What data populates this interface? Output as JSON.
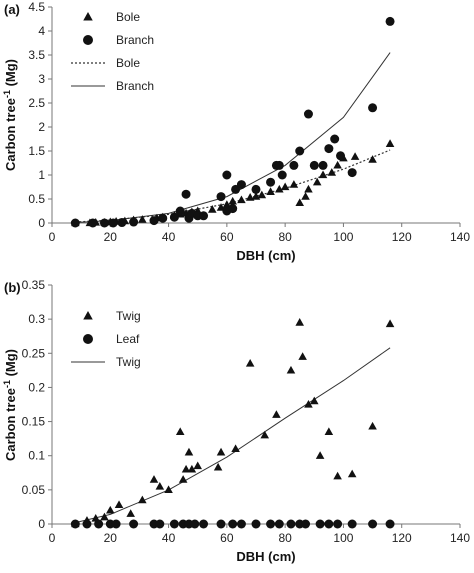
{
  "chart_data": [
    {
      "type": "scatter",
      "panel_label": "(a)",
      "xlabel": "DBH (cm)",
      "ylabel_main": "Carbon tree",
      "ylabel_sup": "-1",
      "ylabel_unit": " (Mg)",
      "xlim": [
        0,
        140
      ],
      "ylim": [
        0,
        4.5
      ],
      "xticks": [
        "0",
        "20",
        "40",
        "60",
        "80",
        "100",
        "120",
        "140"
      ],
      "yticks": [
        "0",
        "0.5",
        "1",
        "1.5",
        "2",
        "2.5",
        "3",
        "3.5",
        "4",
        "4.5"
      ],
      "legend": [
        {
          "label": "Bole",
          "marker": "triangle"
        },
        {
          "label": "Branch",
          "marker": "circle"
        },
        {
          "label": "Bole",
          "line": "dotted"
        },
        {
          "label": "Branch",
          "line": "solid"
        }
      ],
      "series": [
        {
          "name": "Bole",
          "marker": "triangle",
          "points": [
            [
              8,
              0
            ],
            [
              13,
              0
            ],
            [
              15,
              0.01
            ],
            [
              18,
              0.01
            ],
            [
              20,
              0.02
            ],
            [
              22,
              0.03
            ],
            [
              25,
              0.04
            ],
            [
              28,
              0.06
            ],
            [
              31,
              0.07
            ],
            [
              36,
              0.1
            ],
            [
              38,
              0.12
            ],
            [
              42,
              0.15
            ],
            [
              44,
              0.18
            ],
            [
              46,
              0.2
            ],
            [
              48,
              0.23
            ],
            [
              50,
              0.25
            ],
            [
              55,
              0.28
            ],
            [
              58,
              0.32
            ],
            [
              60,
              0.38
            ],
            [
              62,
              0.45
            ],
            [
              65,
              0.48
            ],
            [
              68,
              0.53
            ],
            [
              70,
              0.55
            ],
            [
              72,
              0.58
            ],
            [
              75,
              0.65
            ],
            [
              78,
              0.7
            ],
            [
              80,
              0.75
            ],
            [
              83,
              0.8
            ],
            [
              85,
              0.42
            ],
            [
              87,
              0.55
            ],
            [
              88,
              0.7
            ],
            [
              91,
              0.85
            ],
            [
              93,
              1.0
            ],
            [
              96,
              1.05
            ],
            [
              98,
              1.2
            ],
            [
              100,
              1.35
            ],
            [
              104,
              1.38
            ],
            [
              110,
              1.32
            ],
            [
              116,
              1.65
            ]
          ]
        },
        {
          "name": "Branch",
          "marker": "circle",
          "points": [
            [
              8,
              0
            ],
            [
              14,
              0
            ],
            [
              18,
              0
            ],
            [
              21,
              0
            ],
            [
              24,
              0.01
            ],
            [
              28,
              0.02
            ],
            [
              35,
              0.05
            ],
            [
              38,
              0.1
            ],
            [
              42,
              0.12
            ],
            [
              44,
              0.25
            ],
            [
              46,
              0.6
            ],
            [
              47,
              0.1
            ],
            [
              48,
              0.2
            ],
            [
              50,
              0.15
            ],
            [
              52,
              0.15
            ],
            [
              58,
              0.55
            ],
            [
              60,
              0.25
            ],
            [
              60,
              1.0
            ],
            [
              62,
              0.3
            ],
            [
              63,
              0.7
            ],
            [
              65,
              0.8
            ],
            [
              70,
              0.7
            ],
            [
              75,
              0.85
            ],
            [
              77,
              1.2
            ],
            [
              78,
              1.2
            ],
            [
              79,
              1.0
            ],
            [
              83,
              1.2
            ],
            [
              85,
              1.5
            ],
            [
              88,
              2.27
            ],
            [
              90,
              1.2
            ],
            [
              93,
              1.2
            ],
            [
              95,
              1.55
            ],
            [
              97,
              1.75
            ],
            [
              99,
              1.4
            ],
            [
              103,
              1.05
            ],
            [
              110,
              2.4
            ],
            [
              116,
              4.2
            ]
          ]
        }
      ],
      "fits": [
        {
          "name": "Bole",
          "line": "dotted",
          "points": [
            [
              8,
              0.02
            ],
            [
              20,
              0.06
            ],
            [
              40,
              0.18
            ],
            [
              60,
              0.4
            ],
            [
              80,
              0.72
            ],
            [
              100,
              1.12
            ],
            [
              116,
              1.52
            ]
          ]
        },
        {
          "name": "Branch",
          "line": "solid",
          "points": [
            [
              8,
              0.01
            ],
            [
              20,
              0.05
            ],
            [
              40,
              0.2
            ],
            [
              60,
              0.55
            ],
            [
              80,
              1.2
            ],
            [
              100,
              2.2
            ],
            [
              116,
              3.55
            ]
          ]
        }
      ]
    },
    {
      "type": "scatter",
      "panel_label": "(b)",
      "xlabel": "DBH (cm)",
      "ylabel_main": "Carbon tree",
      "ylabel_sup": "-1",
      "ylabel_unit": " (Mg)",
      "xlim": [
        0,
        140
      ],
      "ylim": [
        0,
        0.35
      ],
      "xticks": [
        "0",
        "20",
        "40",
        "60",
        "80",
        "100",
        "120",
        "140"
      ],
      "yticks": [
        "0",
        "0.05",
        "0.1",
        "0.15",
        "0.2",
        "0.25",
        "0.3",
        "0.35"
      ],
      "legend": [
        {
          "label": "Twig",
          "marker": "triangle"
        },
        {
          "label": "Leaf",
          "marker": "circle"
        },
        {
          "label": "Twig",
          "line": "solid"
        }
      ],
      "series": [
        {
          "name": "Twig",
          "marker": "triangle",
          "points": [
            [
              8,
              0
            ],
            [
              12,
              0.005
            ],
            [
              15,
              0.008
            ],
            [
              18,
              0.01
            ],
            [
              20,
              0.02
            ],
            [
              23,
              0.028
            ],
            [
              27,
              0.015
            ],
            [
              31,
              0.035
            ],
            [
              35,
              0.065
            ],
            [
              37,
              0.055
            ],
            [
              40,
              0.05
            ],
            [
              44,
              0.135
            ],
            [
              45,
              0.065
            ],
            [
              46,
              0.08
            ],
            [
              47,
              0.105
            ],
            [
              48,
              0.08
            ],
            [
              50,
              0.085
            ],
            [
              57,
              0.083
            ],
            [
              58,
              0.105
            ],
            [
              63,
              0.11
            ],
            [
              68,
              0.235
            ],
            [
              73,
              0.13
            ],
            [
              77,
              0.16
            ],
            [
              82,
              0.225
            ],
            [
              85,
              0.295
            ],
            [
              86,
              0.245
            ],
            [
              88,
              0.175
            ],
            [
              90,
              0.18
            ],
            [
              92,
              0.1
            ],
            [
              95,
              0.135
            ],
            [
              98,
              0.07
            ],
            [
              103,
              0.073
            ],
            [
              110,
              0.143
            ],
            [
              116,
              0.293
            ]
          ]
        },
        {
          "name": "Leaf",
          "marker": "circle",
          "points": [
            [
              8,
              0
            ],
            [
              12,
              0
            ],
            [
              16,
              0
            ],
            [
              20,
              0
            ],
            [
              22,
              0
            ],
            [
              28,
              0
            ],
            [
              35,
              0
            ],
            [
              37,
              0
            ],
            [
              42,
              0
            ],
            [
              45,
              0
            ],
            [
              47,
              0
            ],
            [
              49,
              0
            ],
            [
              52,
              0
            ],
            [
              58,
              0
            ],
            [
              62,
              0
            ],
            [
              65,
              0
            ],
            [
              70,
              0
            ],
            [
              75,
              0
            ],
            [
              78,
              0
            ],
            [
              82,
              0
            ],
            [
              85,
              0
            ],
            [
              87,
              0
            ],
            [
              92,
              0
            ],
            [
              95,
              0
            ],
            [
              98,
              0
            ],
            [
              103,
              0
            ],
            [
              110,
              0
            ],
            [
              116,
              0
            ]
          ]
        }
      ],
      "fits": [
        {
          "name": "Twig",
          "line": "solid",
          "points": [
            [
              8,
              0.002
            ],
            [
              20,
              0.014
            ],
            [
              40,
              0.05
            ],
            [
              60,
              0.098
            ],
            [
              80,
              0.155
            ],
            [
              100,
              0.21
            ],
            [
              116,
              0.258
            ]
          ]
        }
      ]
    }
  ]
}
